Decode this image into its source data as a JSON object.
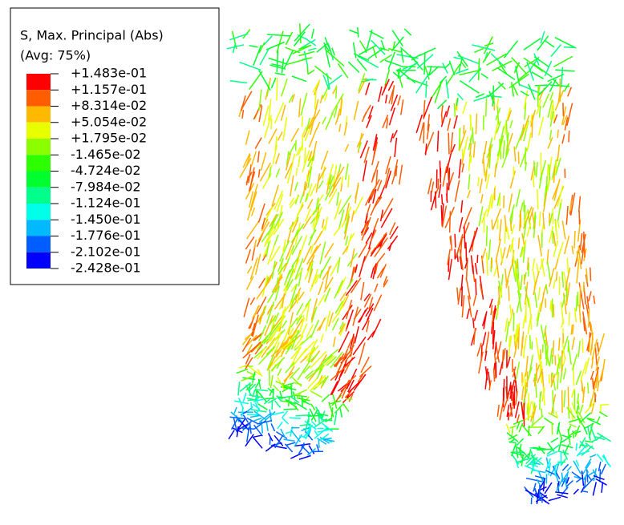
{
  "legend": {
    "title": "S, Max. Principal (Abs)",
    "subtitle": "(Avg: 75%)",
    "labels": [
      "+1.483e-01",
      "+1.157e-01",
      "+8.314e-02",
      "+5.054e-02",
      "+1.795e-02",
      "-1.465e-02",
      "-4.724e-02",
      "-7.984e-02",
      "-1.124e-01",
      "-1.450e-01",
      "-1.776e-01",
      "-2.102e-01",
      "-2.428e-01"
    ],
    "colors": [
      "#ff0000",
      "#ff5d00",
      "#ffb900",
      "#e8ff00",
      "#8bff00",
      "#2eff00",
      "#00ff2e",
      "#00ff8b",
      "#00ffe8",
      "#00b9ff",
      "#005dff",
      "#0000ff"
    ]
  }
}
